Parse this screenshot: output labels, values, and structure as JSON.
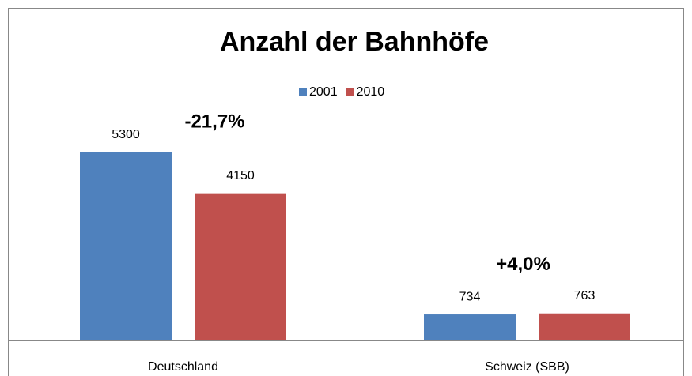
{
  "chart_data": {
    "type": "bar",
    "title": "Anzahl der Bahnhöfe",
    "categories": [
      "Deutschland",
      "Schweiz (SBB)"
    ],
    "series": [
      {
        "name": "2001",
        "color": "#4f81bd",
        "values": [
          5300,
          734
        ]
      },
      {
        "name": "2010",
        "color": "#c0504d",
        "values": [
          4150,
          763
        ]
      }
    ],
    "annotations": [
      "-21,7%",
      "+4,0%"
    ],
    "legend": "top"
  }
}
